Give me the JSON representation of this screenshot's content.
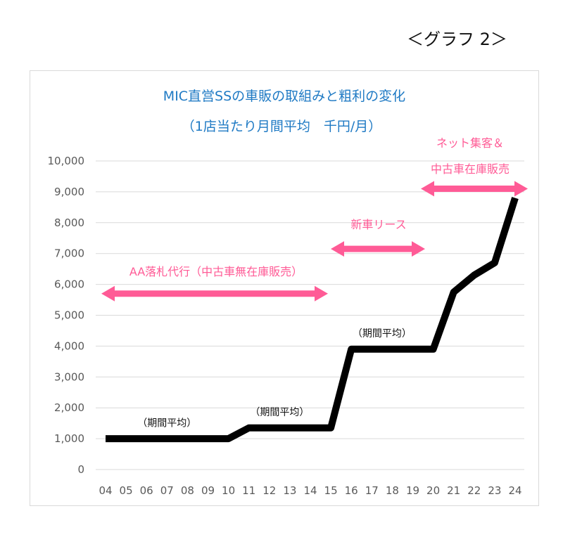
{
  "graph_label": "＜グラフ 2＞",
  "colors": {
    "title": "#1f7ac4",
    "accent": "#ff5b96",
    "line": "#000000",
    "grid": "#d9d9d9",
    "tick": "#595959"
  },
  "chart_data": {
    "type": "line",
    "title": "MIC直営SSの車販の取組みと粗利の変化",
    "subtitle": "（1店当たり月間平均　千円/月）",
    "xlabel": "",
    "ylabel": "",
    "ylim": [
      0,
      10000
    ],
    "y_ticks": [
      "0",
      "1,000",
      "2,000",
      "3,000",
      "4,000",
      "5,000",
      "6,000",
      "7,000",
      "8,000",
      "9,000",
      "10,000"
    ],
    "grid": true,
    "legend": "none",
    "categories": [
      "04",
      "05",
      "06",
      "07",
      "08",
      "09",
      "10",
      "11",
      "12",
      "13",
      "14",
      "15",
      "16",
      "17",
      "18",
      "19",
      "20",
      "21",
      "22",
      "23",
      "24"
    ],
    "series": [
      {
        "values": [
          1000,
          1000,
          1000,
          1000,
          1000,
          1000,
          1000,
          1350,
          1350,
          1350,
          1350,
          1350,
          3900,
          3900,
          3900,
          3900,
          3900,
          5750,
          6300,
          6700,
          8800
        ]
      }
    ],
    "period_labels": [
      {
        "text": "（期間平均）",
        "cat": "07",
        "y": 1450
      },
      {
        "text": "（期間平均）",
        "cat": "12.5",
        "y": 1800
      },
      {
        "text": "（期間平均）",
        "cat": "17.5",
        "y": 4350
      }
    ],
    "annotations": [
      {
        "label": "AA落札代行（中古車無在庫販売）",
        "from": "04",
        "to": "15",
        "y": 5700
      },
      {
        "label": "新車リース",
        "from": "15",
        "to": "19",
        "y": 7150
      },
      {
        "label": "ネット集客＆",
        "label2": "中古車在庫販売",
        "from": "19",
        "to": "24",
        "y": 9100
      }
    ]
  }
}
